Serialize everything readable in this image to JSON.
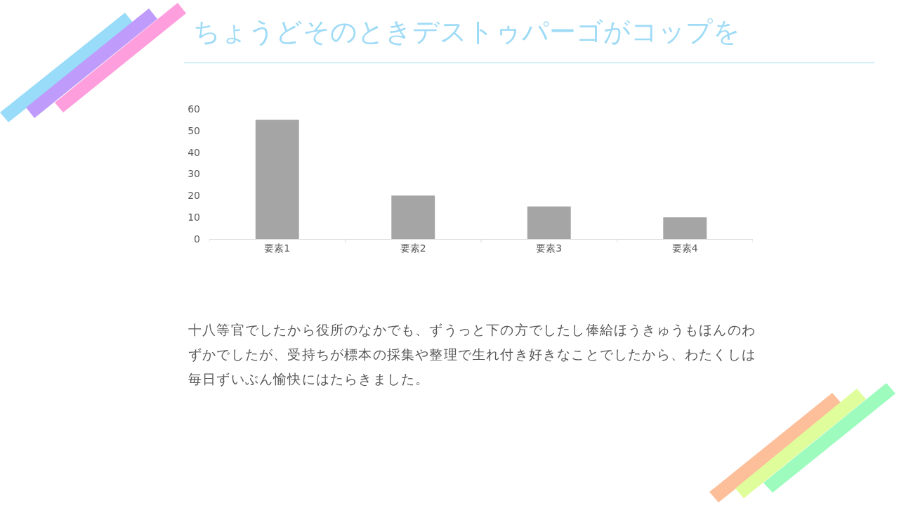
{
  "chart_data": {
    "type": "bar",
    "title": "ちょうどそのときデストゥパーゴがコップを",
    "categories": [
      "要素1",
      "要素2",
      "要素3",
      "要素4"
    ],
    "values": [
      55,
      20,
      15,
      10
    ],
    "color": "#a5a5a5",
    "ylim": [
      0,
      60
    ],
    "yticks": [
      0,
      10,
      20,
      30,
      40,
      50,
      60
    ],
    "grid": false,
    "annotations": [
      "十八等官でしたから役所のなかでも、ずうっと下の方でしたし俸給ほうきゅうもほんのわずかでしたが、受持ちが標本の採集や整理で生れ付き好きなことでしたから、わたくしは毎日ずいぶん愉快にはたらきました。"
    ]
  }
}
